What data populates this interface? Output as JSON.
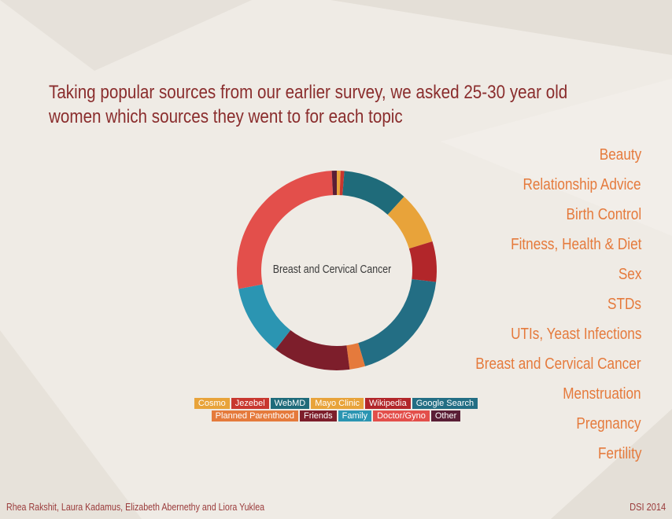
{
  "slide": {
    "title_lines": [
      "Taking popular sources from our earlier survey, we asked 25-30 year old",
      "women which sources they went to for each topic"
    ],
    "credits": "Rhea Rakshit, Laura Kadamus, Elizabeth Abernethy and Liora Yuklea",
    "event": "DSI 2014"
  },
  "topics": [
    "Beauty",
    "Relationship Advice",
    "Birth Control",
    "Fitness, Health & Diet",
    "Sex",
    "STDs",
    "UTIs, Yeast Infections",
    "Breast and Cervical Cancer",
    "Menstruation",
    "Pregnancy",
    "Fertility"
  ],
  "chart_data": {
    "type": "pie",
    "donut": true,
    "center_label": "Breast and Cervical Cancer",
    "series": [
      {
        "name": "Cosmo",
        "value": 0.6,
        "color": "#e8a33a"
      },
      {
        "name": "Jezebel",
        "value": 0.6,
        "color": "#c8372f"
      },
      {
        "name": "WebMD",
        "value": 10.5,
        "color": "#1f6b7a"
      },
      {
        "name": "Mayo Clinic",
        "value": 8.5,
        "color": "#e8a33a"
      },
      {
        "name": "Wikipedia",
        "value": 6.5,
        "color": "#b2262a"
      },
      {
        "name": "Google Search",
        "value": 18.5,
        "color": "#236e84"
      },
      {
        "name": "Planned Parenthood",
        "value": 2.5,
        "color": "#e57a3c"
      },
      {
        "name": "Friends",
        "value": 12.5,
        "color": "#7d1e2b"
      },
      {
        "name": "Family",
        "value": 11.5,
        "color": "#2b95b2"
      },
      {
        "name": "Doctor/Gyno",
        "value": 27,
        "color": "#e34f4b"
      },
      {
        "name": "Other",
        "value": 0.8,
        "color": "#5a1f36"
      }
    ],
    "legend_rows": [
      [
        "Cosmo",
        "Jezebel",
        "WebMD",
        "Mayo Clinic",
        "Wikipedia",
        "Google Search"
      ],
      [
        "Planned Parenthood",
        "Friends",
        "Family",
        "Doctor/Gyno",
        "Other"
      ]
    ]
  }
}
